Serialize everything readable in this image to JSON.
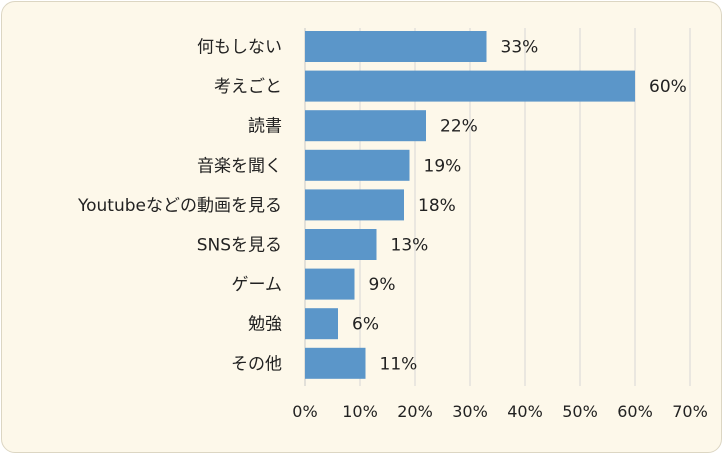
{
  "chart_data": {
    "type": "bar",
    "orientation": "horizontal",
    "categories": [
      "何もしない",
      "考えごと",
      "読書",
      "音楽を聞く",
      "Youtubeなどの動画を見る",
      "SNSを見る",
      "ゲーム",
      "勉強",
      "その他"
    ],
    "values": [
      33,
      60,
      22,
      19,
      18,
      13,
      9,
      6,
      11
    ],
    "value_labels": [
      "33%",
      "60%",
      "22%",
      "19%",
      "18%",
      "13%",
      "9%",
      "6%",
      "11%"
    ],
    "xlim": [
      0,
      70
    ],
    "x_ticks": [
      0,
      10,
      20,
      30,
      40,
      50,
      60,
      70
    ],
    "x_tick_labels": [
      "0%",
      "10%",
      "20%",
      "30%",
      "40%",
      "50%",
      "60%",
      "70%"
    ],
    "grid": "vertical",
    "legend": "none",
    "colors": {
      "bar": "#5b96c9",
      "grid": "#d6d6d6",
      "background": "#fdf8ea"
    }
  }
}
